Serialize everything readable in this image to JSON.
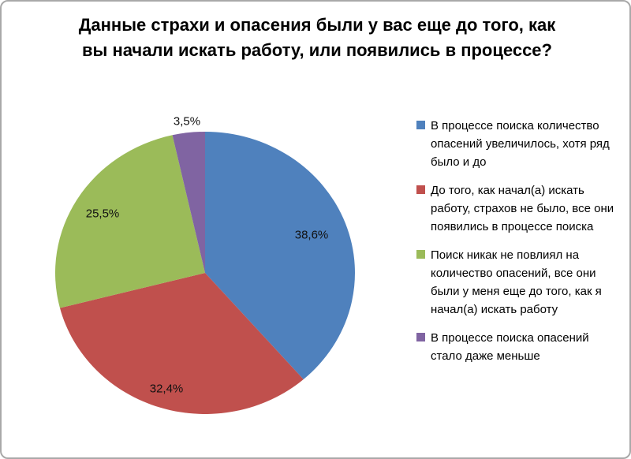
{
  "chart_data": {
    "type": "pie",
    "title": "Данные страхи и опасения были у вас еще до того, как вы начали искать работу, или появились в процессе?",
    "categories": [
      "В процессе поиска количество опасений увеличилось, хотя ряд было и до",
      "До того, как начал(а) искать работу, страхов не было, все они появились в процессе поиска",
      "Поиск никак не повлиял на количество опасений, все они были у меня еще до того, как я начал(а) искать работу",
      "В процессе поиска опасений стало даже меньше"
    ],
    "values": [
      38.6,
      32.4,
      25.5,
      3.5
    ],
    "value_labels": [
      "38,6%",
      "32,4%",
      "25,5%",
      "3,5%"
    ],
    "colors": [
      "#4F81BD",
      "#C0504D",
      "#9BBB59",
      "#8064A2"
    ],
    "legend_position": "right",
    "start_angle_deg": 0,
    "direction": "clockwise",
    "background_color": "#FFFFFF",
    "frame_border_color": "#A9A9A9"
  }
}
